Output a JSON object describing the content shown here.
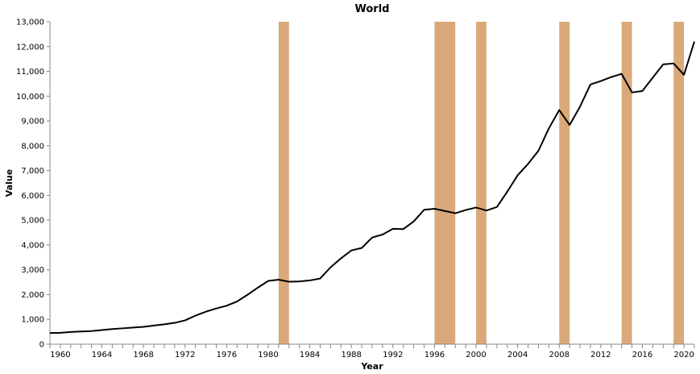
{
  "chart_data": {
    "type": "line",
    "title": "World",
    "xlabel": "Year",
    "ylabel": "Value",
    "xlim": [
      1959,
      2021
    ],
    "ylim": [
      0,
      13000
    ],
    "x_ticks": [
      1960,
      1964,
      1968,
      1972,
      1976,
      1980,
      1984,
      1988,
      1992,
      1996,
      2000,
      2004,
      2008,
      2012,
      2016,
      2020
    ],
    "y_ticks": [
      0,
      1000,
      2000,
      3000,
      4000,
      5000,
      6000,
      7000,
      8000,
      9000,
      10000,
      11000,
      12000,
      13000
    ],
    "grid": false,
    "colors": {
      "line": "#000000",
      "band": "#dba979"
    },
    "highlight_periods": [
      {
        "start": 1981,
        "end": 1982
      },
      {
        "start": 1996,
        "end": 1998
      },
      {
        "start": 2000,
        "end": 2001
      },
      {
        "start": 2008,
        "end": 2009
      },
      {
        "start": 2014,
        "end": 2015
      },
      {
        "start": 2019,
        "end": 2020
      }
    ],
    "series": [
      {
        "x": [
          1959,
          1960,
          1961,
          1962,
          1963,
          1964,
          1965,
          1966,
          1967,
          1968,
          1969,
          1970,
          1971,
          1972,
          1973,
          1974,
          1975,
          1976,
          1977,
          1978,
          1979,
          1980,
          1981,
          1982,
          1983,
          1984,
          1985,
          1986,
          1987,
          1988,
          1989,
          1990,
          1991,
          1992,
          1993,
          1994,
          1995,
          1996,
          1997,
          1998,
          1999,
          2000,
          2001,
          2002,
          2003,
          2004,
          2005,
          2006,
          2007,
          2008,
          2009,
          2010,
          2011,
          2012,
          2013,
          2014,
          2015,
          2016,
          2017,
          2018,
          2019,
          2020,
          2021
        ],
        "values": [
          450,
          460,
          490,
          510,
          530,
          570,
          610,
          640,
          670,
          700,
          750,
          800,
          860,
          960,
          1150,
          1310,
          1440,
          1550,
          1720,
          1990,
          2280,
          2550,
          2600,
          2520,
          2530,
          2570,
          2650,
          3100,
          3460,
          3780,
          3880,
          4300,
          4420,
          4650,
          4640,
          4950,
          5420,
          5460,
          5370,
          5280,
          5410,
          5510,
          5390,
          5530,
          6150,
          6810,
          7270,
          7800,
          8700,
          9440,
          8840,
          9580,
          10470,
          10610,
          10770,
          10900,
          10150,
          10210,
          10750,
          11280,
          11320,
          10860,
          12200
        ]
      }
    ]
  }
}
